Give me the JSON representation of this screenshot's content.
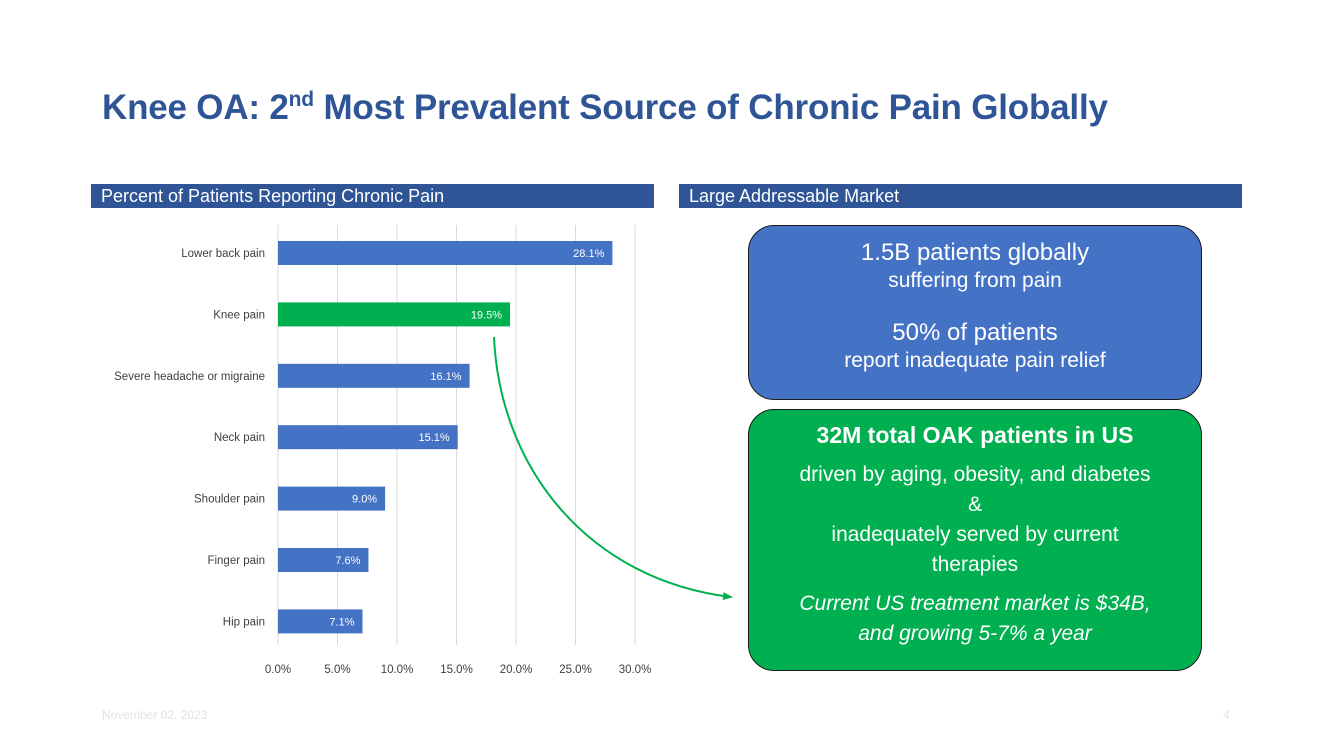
{
  "slide": {
    "title_pre": "Knee OA: 2",
    "title_sup": "nd",
    "title_post": " Most Prevalent Source of Chronic Pain Globally",
    "date": "November 02, 2023",
    "page_number": "4"
  },
  "left_panel": {
    "header": "Percent of Patients Reporting Chronic Pain"
  },
  "right_panel": {
    "header": "Large Addressable Market",
    "blue_box": {
      "line1": "1.5B patients globally",
      "line2": "suffering from pain",
      "line3": "50% of patients",
      "line4": "report inadequate pain relief"
    },
    "green_box": {
      "headline": "32M total OAK patients in US",
      "line1": "driven by aging, obesity, and diabetes",
      "line2": "&",
      "line3": "inadequately served by current therapies",
      "line4": "Current US treatment market is $34B,",
      "line5": "and growing 5-7% a year"
    }
  },
  "chart_data": {
    "type": "bar",
    "orientation": "horizontal",
    "title": "",
    "xlabel": "",
    "ylabel": "",
    "categories": [
      "Lower back pain",
      "Knee pain",
      "Severe headache or migraine",
      "Neck pain",
      "Shoulder pain",
      "Finger pain",
      "Hip pain"
    ],
    "values": [
      28.1,
      19.5,
      16.1,
      15.1,
      9.0,
      7.6,
      7.1
    ],
    "value_labels": [
      "28.1%",
      "19.5%",
      "16.1%",
      "15.1%",
      "9.0%",
      "7.6%",
      "7.1%"
    ],
    "xlim": [
      0,
      30
    ],
    "xticks": [
      0,
      5,
      10,
      15,
      20,
      25,
      30
    ],
    "xtick_labels": [
      "0.0%",
      "5.0%",
      "10.0%",
      "15.0%",
      "20.0%",
      "25.0%",
      "30.0%"
    ],
    "grid": true,
    "bar_color": "#4472C4",
    "highlight_category": "Knee pain",
    "highlight_color": "#00B050"
  }
}
